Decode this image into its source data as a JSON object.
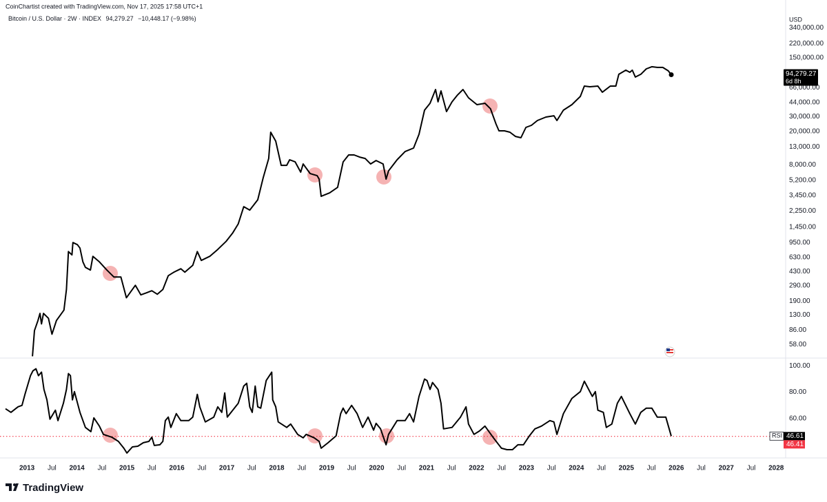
{
  "header": {
    "credit": "CoinChartist created with TradingView.com, Nov 17, 2025 17:58 UTC+1",
    "symbol": "Bitcoin / U.S. Dollar · 2W · INDEX",
    "price": "94,279.27",
    "change": "−10,448.17 (−9.98%)"
  },
  "currency": "USD",
  "brand": "TradingView",
  "chart_data": [
    {
      "type": "line",
      "log_scale": true,
      "color": "#000000",
      "x": [
        2013.11,
        2013.15,
        2013.22,
        2013.26,
        2013.29,
        2013.33,
        2013.43,
        2013.5,
        2013.59,
        2013.74,
        2013.79,
        2013.83,
        2013.9,
        2013.92,
        2014.01,
        2014.06,
        2014.12,
        2014.17,
        2014.27,
        2014.32,
        2014.45,
        2014.6,
        2014.74,
        2014.88,
        2014.99,
        2015.17,
        2015.28,
        2015.39,
        2015.5,
        2015.61,
        2015.72,
        2015.83,
        2015.94,
        2016.08,
        2016.16,
        2016.32,
        2016.41,
        2016.49,
        2016.66,
        2016.82,
        2016.99,
        2017.12,
        2017.23,
        2017.34,
        2017.46,
        2017.62,
        2017.73,
        2017.84,
        2017.88,
        2017.98,
        2018.09,
        2018.2,
        2018.26,
        2018.37,
        2018.48,
        2018.53,
        2018.67,
        2018.81,
        2018.85,
        2018.89,
        2019.06,
        2019.22,
        2019.33,
        2019.44,
        2019.55,
        2019.66,
        2019.77,
        2019.88,
        2019.99,
        2020.13,
        2020.19,
        2020.24,
        2020.41,
        2020.57,
        2020.74,
        2020.85,
        2020.96,
        2021.07,
        2021.18,
        2021.23,
        2021.29,
        2021.4,
        2021.51,
        2021.62,
        2021.73,
        2021.84,
        2022.01,
        2022.17,
        2022.28,
        2022.39,
        2022.45,
        2022.56,
        2022.67,
        2022.78,
        2022.89,
        2022.99,
        2023.1,
        2023.22,
        2023.39,
        2023.55,
        2023.61,
        2023.74,
        2023.91,
        2024.08,
        2024.16,
        2024.27,
        2024.43,
        2024.52,
        2024.68,
        2024.79,
        2024.85,
        2024.99,
        2025.07,
        2025.12,
        2025.18,
        2025.29,
        2025.4,
        2025.51,
        2025.62,
        2025.73,
        2025.84,
        2025.9
      ],
      "values": [
        42,
        85,
        112,
        136,
        102,
        136,
        119,
        77,
        112,
        149,
        262,
        741,
        675,
        948,
        895,
        815,
        558,
        481,
        446,
        650,
        558,
        446,
        369,
        369,
        209,
        294,
        226,
        239,
        253,
        230,
        262,
        383,
        421,
        462,
        421,
        508,
        741,
        581,
        650,
        785,
        984,
        1236,
        1581,
        2535,
        2307,
        3062,
        5598,
        9506,
        19480,
        15240,
        7870,
        7870,
        9160,
        8650,
        6520,
        8170,
        6270,
        5930,
        5390,
        3365,
        3700,
        4300,
        8650,
        10450,
        10450,
        9860,
        9506,
        8170,
        8980,
        8170,
        5390,
        6760,
        9160,
        11480,
        12620,
        18410,
        35650,
        43050,
        62810,
        44770,
        60530,
        34360,
        44770,
        54080,
        62810,
        50120,
        41500,
        43050,
        37070,
        24430,
        20230,
        20230,
        19480,
        17380,
        16750,
        22230,
        23550,
        26860,
        29510,
        30620,
        26860,
        35650,
        41500,
        52000,
        69020,
        67780,
        69020,
        58340,
        69020,
        69020,
        95260,
        106660,
        100750,
        106660,
        88310,
        95260,
        110660,
        117220,
        115080,
        115080,
        104710,
        94279.27
      ],
      "xlim": [
        2012.46,
        2028.19
      ],
      "ylim": [
        40,
        550000
      ],
      "yticks": [
        {
          "value": 58,
          "label": "58.00"
        },
        {
          "value": 86,
          "label": "86.00"
        },
        {
          "value": 130,
          "label": "130.00"
        },
        {
          "value": 190,
          "label": "190.00"
        },
        {
          "value": 290,
          "label": "290.00"
        },
        {
          "value": 430,
          "label": "430.00"
        },
        {
          "value": 630,
          "label": "630.00"
        },
        {
          "value": 950,
          "label": "950.00"
        },
        {
          "value": 1450,
          "label": "1,450.00"
        },
        {
          "value": 2250,
          "label": "2,250.00"
        },
        {
          "value": 3450,
          "label": "3,450.00"
        },
        {
          "value": 5200,
          "label": "5,200.00"
        },
        {
          "value": 8000,
          "label": "8,000.00"
        },
        {
          "value": 13000,
          "label": "13,000.00"
        },
        {
          "value": 20000,
          "label": "20,000.00"
        },
        {
          "value": 30000,
          "label": "30,000.00"
        },
        {
          "value": 44000,
          "label": "44,000.00"
        },
        {
          "value": 66000,
          "label": "66,000.00"
        },
        {
          "value": 150000,
          "label": "150,000.00"
        },
        {
          "value": 220000,
          "label": "220,000.00"
        },
        {
          "value": 340000,
          "label": "340,000.00"
        }
      ],
      "last_value_label": "94,279.27",
      "countdown": "6d 8h"
    },
    {
      "type": "line",
      "name": "RSI",
      "color": "#000000",
      "x": [
        2012.57,
        2012.68,
        2012.82,
        2012.9,
        2012.96,
        2013.07,
        2013.12,
        2013.18,
        2013.23,
        2013.29,
        2013.34,
        2013.4,
        2013.46,
        2013.57,
        2013.62,
        2013.73,
        2013.79,
        2013.83,
        2013.87,
        2013.91,
        2013.95,
        2014.06,
        2014.17,
        2014.28,
        2014.34,
        2014.45,
        2014.53,
        2014.7,
        2014.83,
        2014.94,
        2015.0,
        2015.11,
        2015.22,
        2015.33,
        2015.44,
        2015.5,
        2015.55,
        2015.66,
        2015.72,
        2015.77,
        2015.83,
        2015.88,
        2015.99,
        2016.08,
        2016.24,
        2016.32,
        2016.41,
        2016.46,
        2016.57,
        2016.74,
        2016.82,
        2016.9,
        2016.96,
        2017.01,
        2017.12,
        2017.23,
        2017.34,
        2017.4,
        2017.46,
        2017.51,
        2017.57,
        2017.62,
        2017.68,
        2017.79,
        2017.9,
        2017.92,
        2017.98,
        2018.03,
        2018.2,
        2018.28,
        2018.42,
        2018.53,
        2018.59,
        2018.75,
        2018.85,
        2018.89,
        2019.03,
        2019.19,
        2019.28,
        2019.33,
        2019.39,
        2019.5,
        2019.61,
        2019.72,
        2019.83,
        2019.94,
        2019.99,
        2020.08,
        2020.19,
        2020.24,
        2020.41,
        2020.57,
        2020.66,
        2020.74,
        2020.85,
        2020.96,
        2021.01,
        2021.07,
        2021.12,
        2021.23,
        2021.29,
        2021.34,
        2021.51,
        2021.68,
        2021.79,
        2021.84,
        2021.95,
        2022.06,
        2022.17,
        2022.34,
        2022.5,
        2022.61,
        2022.72,
        2022.83,
        2022.94,
        2023.06,
        2023.17,
        2023.3,
        2023.47,
        2023.55,
        2023.61,
        2023.74,
        2023.91,
        2024.08,
        2024.16,
        2024.21,
        2024.32,
        2024.38,
        2024.43,
        2024.54,
        2024.6,
        2024.71,
        2024.82,
        2024.9,
        2025.07,
        2025.18,
        2025.29,
        2025.4,
        2025.51,
        2025.62,
        2025.73,
        2025.79,
        2025.9
      ],
      "values": [
        67.4,
        64.7,
        68.9,
        70.0,
        78.4,
        92.6,
        96.3,
        97.9,
        92.6,
        95.3,
        82.1,
        74.2,
        59.5,
        66.3,
        58.4,
        71.6,
        82.1,
        94.2,
        92.6,
        74.2,
        80.5,
        64.7,
        53.2,
        50.0,
        60.5,
        54.2,
        47.9,
        45.8,
        42.6,
        37.4,
        33.7,
        38.4,
        38.9,
        41.6,
        42.6,
        45.8,
        39.5,
        40.0,
        42.6,
        58.4,
        61.1,
        53.2,
        63.7,
        58.4,
        58.4,
        61.1,
        78.4,
        68.9,
        57.4,
        61.1,
        68.9,
        64.7,
        79.5,
        61.1,
        66.3,
        71.6,
        84.7,
        86.8,
        68.9,
        64.7,
        84.7,
        68.9,
        67.9,
        88.9,
        95.3,
        74.2,
        68.9,
        57.4,
        53.2,
        55.8,
        47.9,
        45.3,
        47.9,
        45.3,
        42.6,
        37.4,
        41.6,
        46.8,
        63.7,
        67.9,
        63.7,
        70.0,
        63.7,
        53.2,
        61.1,
        51.1,
        56.3,
        52.1,
        40.0,
        47.9,
        58.4,
        58.4,
        63.7,
        57.4,
        76.8,
        90.0,
        88.9,
        82.1,
        87.4,
        82.1,
        71.6,
        52.1,
        53.2,
        61.1,
        68.9,
        55.8,
        47.9,
        50.5,
        54.2,
        45.3,
        37.4,
        36.3,
        36.3,
        40.0,
        40.0,
        46.8,
        52.1,
        54.2,
        58.4,
        57.4,
        47.9,
        63.7,
        75.3,
        80.5,
        88.4,
        84.7,
        76.8,
        80.5,
        66.3,
        64.7,
        53.2,
        55.8,
        71.6,
        76.8,
        63.7,
        55.8,
        64.7,
        67.9,
        67.9,
        61.1,
        61.1,
        61.1,
        46.61
      ],
      "xlim": [
        2012.46,
        2028.19
      ],
      "xticks": [
        2013,
        {
          "value": 2013.5,
          "label": "Jul"
        },
        2014,
        {
          "value": 2014.5,
          "label": "Jul"
        },
        2015,
        {
          "value": 2015.5,
          "label": "Jul"
        },
        2016,
        {
          "value": 2016.5,
          "label": "Jul"
        },
        2017,
        {
          "value": 2017.5,
          "label": "Jul"
        },
        2018,
        {
          "value": 2018.5,
          "label": "Jul"
        },
        2019,
        {
          "value": 2019.5,
          "label": "Jul"
        },
        2020,
        {
          "value": 2020.5,
          "label": "Jul"
        },
        2021,
        {
          "value": 2021.5,
          "label": "Jul"
        },
        2022,
        {
          "value": 2022.5,
          "label": "Jul"
        },
        2023,
        {
          "value": 2023.5,
          "label": "Jul"
        },
        2024,
        {
          "value": 2024.5,
          "label": "Jul"
        },
        2025,
        {
          "value": 2025.5,
          "label": "Jul"
        },
        2026,
        {
          "value": 2026.5,
          "label": "Jul"
        },
        2027,
        {
          "value": 2027.5,
          "label": "Jul"
        },
        2028
      ],
      "ylim": [
        30,
        106
      ],
      "yticks": [
        {
          "value": 100,
          "label": "100.00"
        },
        {
          "value": 80,
          "label": "80.00"
        },
        {
          "value": 60,
          "label": "60.00"
        }
      ],
      "last_value_label": "46.61",
      "reference": {
        "value": 46.41,
        "label": "46.41",
        "color": "#f23645"
      }
    }
  ]
}
